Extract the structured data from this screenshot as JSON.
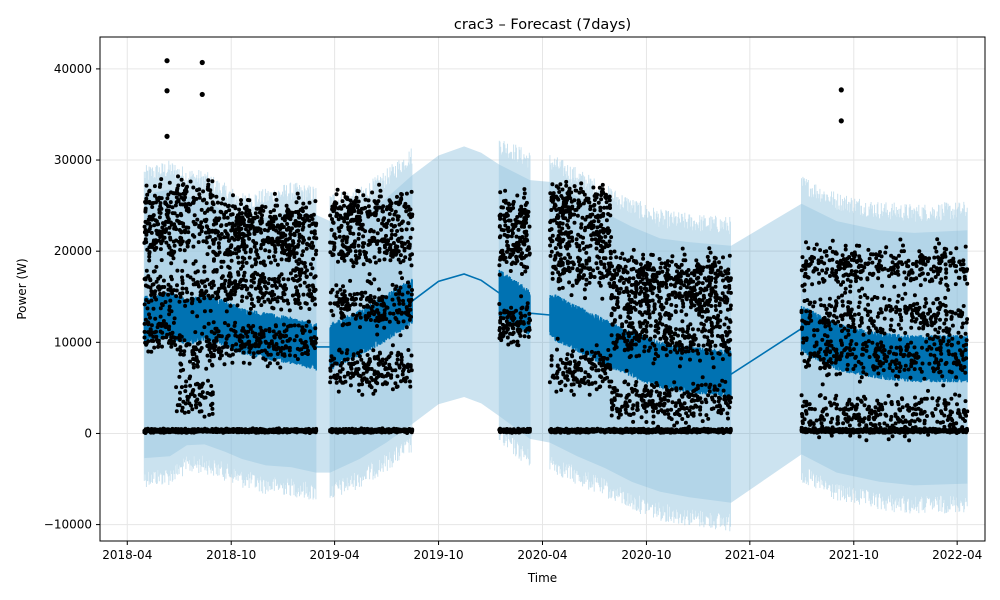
{
  "chart_data": {
    "type": "line",
    "title": "crac3 – Forecast (7days)",
    "xlabel": "Time",
    "ylabel": "Power (W)",
    "x_ticks": [
      {
        "date": "2018-04-01",
        "label": "2018-04"
      },
      {
        "date": "2018-10-01",
        "label": "2018-10"
      },
      {
        "date": "2019-04-01",
        "label": "2019-04"
      },
      {
        "date": "2019-10-01",
        "label": "2019-10"
      },
      {
        "date": "2020-04-01",
        "label": "2020-04"
      },
      {
        "date": "2020-10-01",
        "label": "2020-10"
      },
      {
        "date": "2021-04-01",
        "label": "2021-04"
      },
      {
        "date": "2021-10-01",
        "label": "2021-10"
      },
      {
        "date": "2022-04-01",
        "label": "2022-04"
      }
    ],
    "y_ticks": [
      {
        "value": -10000,
        "label": "−10000"
      },
      {
        "value": 0,
        "label": "0"
      },
      {
        "value": 10000,
        "label": "10000"
      },
      {
        "value": 20000,
        "label": "20000"
      },
      {
        "value": 30000,
        "label": "30000"
      },
      {
        "value": 40000,
        "label": "40000"
      }
    ],
    "xlim": [
      "2018-02-12",
      "2022-05-20"
    ],
    "ylim": [
      -11800,
      43500
    ],
    "grid": true,
    "colors": {
      "forecast_line": "#0072B2",
      "uncertainty_band": "#0072B2",
      "observations": "#000000"
    },
    "observation_segments": [
      {
        "start": "2018-05-01",
        "end": "2018-06-24",
        "levels": [
          300,
          11000,
          16000,
          21500,
          25000
        ],
        "outliers": [
          {
            "x": "2018-06-10",
            "y": 40900
          },
          {
            "x": "2018-06-10",
            "y": 37600
          },
          {
            "x": "2018-06-10",
            "y": 32600
          }
        ]
      },
      {
        "start": "2018-06-24",
        "end": "2018-08-31",
        "levels": [
          300,
          4000,
          9000,
          16000,
          22000,
          26000
        ],
        "outliers": [
          {
            "x": "2018-08-11",
            "y": 40700
          },
          {
            "x": "2018-08-11",
            "y": 37200
          }
        ]
      },
      {
        "start": "2018-08-31",
        "end": "2019-02-28",
        "levels": [
          300,
          10000,
          16000,
          20500,
          23500
        ],
        "outliers": []
      },
      {
        "start": "2019-03-24",
        "end": "2019-08-16",
        "levels": [
          300,
          7000,
          14000,
          20500,
          24500
        ],
        "outliers": []
      },
      {
        "start": "2020-01-16",
        "end": "2020-03-10",
        "levels": [
          300,
          12000,
          20000,
          24000
        ],
        "outliers": []
      },
      {
        "start": "2020-04-14",
        "end": "2020-07-31",
        "levels": [
          300,
          7000,
          18000,
          22000,
          25500
        ],
        "outliers": []
      },
      {
        "start": "2020-07-31",
        "end": "2021-02-27",
        "levels": [
          300,
          3500,
          10500,
          14500,
          17500
        ],
        "outliers": []
      },
      {
        "start": "2021-07-01",
        "end": "2022-04-19",
        "levels": [
          300,
          2000,
          8500,
          13000,
          18500
        ],
        "outliers": [
          {
            "x": "2021-09-09",
            "y": 37700
          },
          {
            "x": "2021-09-09",
            "y": 34300
          }
        ]
      }
    ],
    "forecast": [
      {
        "date": "2018-05-01",
        "yhat": 12500,
        "lower": -2700,
        "upper": 26200
      },
      {
        "date": "2018-06-15",
        "yhat": 13000,
        "lower": -2500,
        "upper": 26800
      },
      {
        "date": "2018-07-15",
        "yhat": 12200,
        "lower": -1300,
        "upper": 26000
      },
      {
        "date": "2018-08-15",
        "yhat": 12800,
        "lower": -1200,
        "upper": 25700
      },
      {
        "date": "2018-09-20",
        "yhat": 12100,
        "lower": -2000,
        "upper": 24300
      },
      {
        "date": "2018-10-20",
        "yhat": 11200,
        "lower": -2800,
        "upper": 23200
      },
      {
        "date": "2018-12-01",
        "yhat": 10700,
        "lower": -3500,
        "upper": 23700
      },
      {
        "date": "2019-01-15",
        "yhat": 10200,
        "lower": -3700,
        "upper": 24400
      },
      {
        "date": "2019-02-27",
        "yhat": 9500,
        "lower": -4300,
        "upper": 24000
      },
      {
        "date": "2019-03-24",
        "yhat": 9500,
        "lower": -4300,
        "upper": 23300
      },
      {
        "date": "2019-05-15",
        "yhat": 11000,
        "lower": -2800,
        "upper": 23800
      },
      {
        "date": "2019-07-01",
        "yhat": 12700,
        "lower": -1000,
        "upper": 25800
      },
      {
        "date": "2019-08-15",
        "yhat": 14500,
        "lower": 1000,
        "upper": 28300
      },
      {
        "date": "2019-10-01",
        "yhat": 16700,
        "lower": 3200,
        "upper": 30500
      },
      {
        "date": "2019-11-15",
        "yhat": 17500,
        "lower": 4000,
        "upper": 31500
      },
      {
        "date": "2019-12-15",
        "yhat": 16800,
        "lower": 3300,
        "upper": 30800
      },
      {
        "date": "2020-01-16",
        "yhat": 15400,
        "lower": 1900,
        "upper": 29500
      },
      {
        "date": "2020-03-10",
        "yhat": 13200,
        "lower": -600,
        "upper": 27800
      },
      {
        "date": "2020-04-14",
        "yhat": 13000,
        "lower": -1000,
        "upper": 27600
      },
      {
        "date": "2020-06-01",
        "yhat": 11500,
        "lower": -2500,
        "upper": 26000
      },
      {
        "date": "2020-07-20",
        "yhat": 10000,
        "lower": -3800,
        "upper": 24200
      },
      {
        "date": "2020-09-05",
        "yhat": 8700,
        "lower": -5300,
        "upper": 22700
      },
      {
        "date": "2020-10-25",
        "yhat": 7500,
        "lower": -6400,
        "upper": 21400
      },
      {
        "date": "2020-12-15",
        "yhat": 7000,
        "lower": -7000,
        "upper": 21000
      },
      {
        "date": "2021-02-27",
        "yhat": 6500,
        "lower": -7600,
        "upper": 20600
      },
      {
        "date": "2021-07-01",
        "yhat": 11500,
        "lower": -2300,
        "upper": 25200
      },
      {
        "date": "2021-09-01",
        "yhat": 9500,
        "lower": -4300,
        "upper": 23300
      },
      {
        "date": "2021-11-15",
        "yhat": 8500,
        "lower": -5300,
        "upper": 22300
      },
      {
        "date": "2022-01-15",
        "yhat": 8200,
        "lower": -5700,
        "upper": 22000
      },
      {
        "date": "2022-04-19",
        "yhat": 8200,
        "lower": -5500,
        "upper": 22300
      }
    ]
  }
}
